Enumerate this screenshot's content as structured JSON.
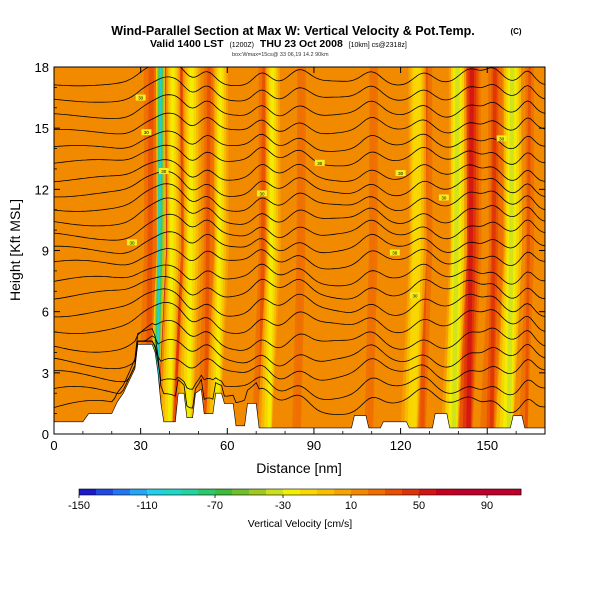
{
  "title": "Wind-Parallel Section at Max W: Vertical Velocity & Pot.Temp.",
  "title_mark": "(C)",
  "subtitle_main": "Valid 1400 LST",
  "subtitle_small1": "(1200Z)",
  "subtitle_date": "THU 23 Oct 2008",
  "subtitle_small2": "[10km] cs@2318z]",
  "info_line": "box:Wmax=15cs@ 33 06,19 14.2 90km",
  "chart_data": {
    "type": "heatmap",
    "title": "Wind-Parallel Section at Max W: Vertical Velocity & Pot.Temp.",
    "xlabel": "Distance [nm]",
    "ylabel": "Height [Kft MSL]",
    "xlim": [
      0,
      170
    ],
    "ylim": [
      0,
      18
    ],
    "x_ticks": [
      0,
      30,
      60,
      90,
      120,
      150
    ],
    "y_ticks": [
      0,
      3,
      6,
      9,
      12,
      15,
      18
    ],
    "grid": false,
    "colorbar": {
      "label": "Vertical Velocity [cm/s]",
      "min": -150,
      "max": 110,
      "step": 10,
      "ticks": [
        -150,
        -110,
        -70,
        -30,
        10,
        50,
        90
      ],
      "colors": [
        "#1a1acc",
        "#1f49e0",
        "#2277f0",
        "#22a6f5",
        "#22cfe8",
        "#20d8c8",
        "#24d4a0",
        "#2cc86c",
        "#3fbb3c",
        "#6fbf2a",
        "#a0c820",
        "#cce020",
        "#f0f000",
        "#f8d800",
        "#f8bf00",
        "#f5a400",
        "#f28a00",
        "#ee6e00",
        "#e85000",
        "#de3208",
        "#d21414",
        "#c8001e",
        "#c0002a",
        "#c0002a",
        "#c0002a",
        "#c0002a"
      ]
    },
    "updraft_bands": [
      {
        "x": 33,
        "w": 3.5,
        "w_max": 30
      },
      {
        "x": 38.5,
        "w": 2.6,
        "w_max": 90
      },
      {
        "x": 43,
        "w": 2.5,
        "w_max": 40
      },
      {
        "x": 53,
        "w": 2.5,
        "w_max": 35
      },
      {
        "x": 72,
        "w": 2.5,
        "w_max": 30
      },
      {
        "x": 85,
        "w": 3.0,
        "w_max": 25
      },
      {
        "x": 110,
        "w": 3.0,
        "w_max": 25
      },
      {
        "x": 128,
        "w": 3.0,
        "w_max": 30
      },
      {
        "x": 144,
        "w": 3.0,
        "w_max": 55
      },
      {
        "x": 152,
        "w": 2.5,
        "w_max": 45
      },
      {
        "x": 164,
        "w": 2.0,
        "w_max": 30
      }
    ],
    "downdraft_bands": [
      {
        "x": 36.2,
        "w": 1.6,
        "w_min": -110
      },
      {
        "x": 40.5,
        "w": 2.5,
        "w_min": -30
      },
      {
        "x": 47,
        "w": 3.0,
        "w_min": -30
      },
      {
        "x": 57,
        "w": 2.5,
        "w_min": -25
      },
      {
        "x": 75,
        "w": 2.5,
        "w_min": -25
      },
      {
        "x": 125,
        "w": 3.0,
        "w_min": -20
      },
      {
        "x": 139,
        "w": 3.0,
        "w_min": -35
      },
      {
        "x": 158,
        "w": 3.0,
        "w_min": -40
      }
    ],
    "isentrope_levels_kft": [
      1.3,
      2.0,
      2.8,
      3.5,
      4.3,
      5.2,
      6.0,
      6.8,
      7.5,
      8.3,
      9.0,
      9.7,
      10.4,
      11.1,
      11.8,
      12.5,
      13.3,
      14.0,
      14.8,
      15.6,
      16.4,
      17.2
    ],
    "isentrope_label": "30",
    "terrain_kft": [
      [
        0,
        0.6
      ],
      [
        10,
        0.6
      ],
      [
        12,
        1.0
      ],
      [
        20,
        1.0
      ],
      [
        22,
        1.6
      ],
      [
        24,
        2.0
      ],
      [
        26,
        2.6
      ],
      [
        28,
        3.2
      ],
      [
        29,
        4.4
      ],
      [
        34,
        4.4
      ],
      [
        35,
        4.0
      ],
      [
        36,
        3.0
      ],
      [
        37,
        1.5
      ],
      [
        38,
        0.6
      ],
      [
        42,
        0.6
      ],
      [
        43,
        2.0
      ],
      [
        45,
        2.0
      ],
      [
        46,
        0.8
      ],
      [
        48,
        0.8
      ],
      [
        49,
        2.0
      ],
      [
        51,
        2.2
      ],
      [
        52,
        1.0
      ],
      [
        55,
        1.0
      ],
      [
        56,
        2.0
      ],
      [
        58,
        2.0
      ],
      [
        59,
        1.5
      ],
      [
        62,
        1.5
      ],
      [
        63,
        0.4
      ],
      [
        66,
        0.4
      ],
      [
        67,
        1.5
      ],
      [
        70,
        1.5
      ],
      [
        71,
        0.3
      ],
      [
        103,
        0.3
      ],
      [
        104,
        0.9
      ],
      [
        108,
        0.9
      ],
      [
        109,
        0.3
      ],
      [
        113,
        0.3
      ],
      [
        114,
        0.6
      ],
      [
        122,
        0.6
      ],
      [
        123,
        0.3
      ],
      [
        131,
        0.3
      ],
      [
        132,
        1.0
      ],
      [
        136,
        1.0
      ],
      [
        137,
        0.3
      ],
      [
        158,
        0.3
      ],
      [
        159,
        0.9
      ],
      [
        162,
        0.9
      ],
      [
        163,
        0.3
      ],
      [
        170,
        0.3
      ]
    ]
  }
}
